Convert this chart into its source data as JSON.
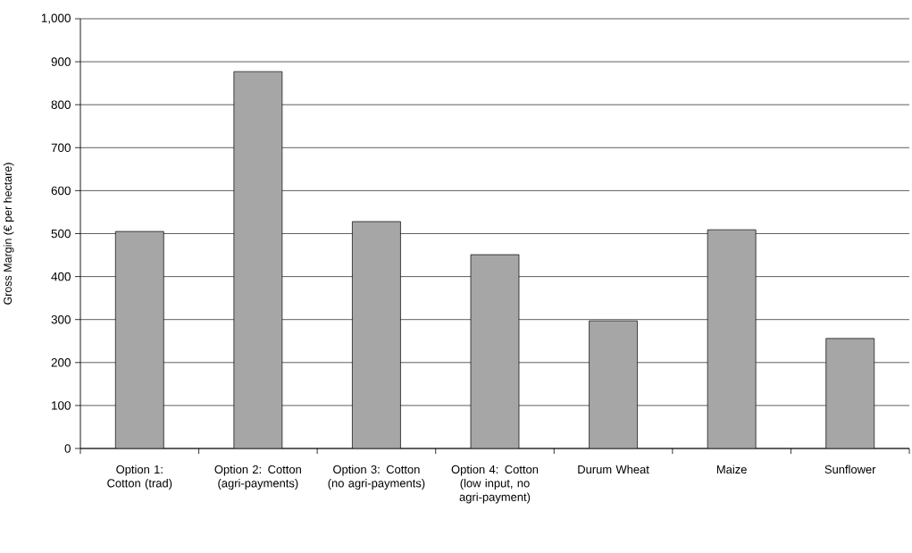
{
  "chart_data": {
    "type": "bar",
    "ylabel": "Gross Margin (€ per hectare)",
    "categories": [
      "Option 1: Cotton (trad)",
      "Option 2: Cotton (agri-payments)",
      "Option 3: Cotton (no agri-payments)",
      "Option 4: Cotton (low input, no agri-payment)",
      "Durum Wheat",
      "Maize",
      "Sunflower"
    ],
    "values": [
      505,
      877,
      528,
      451,
      297,
      509,
      256
    ],
    "color": "#a6a6a6",
    "ylim": [
      0,
      1000
    ],
    "yticks": [
      0,
      100,
      200,
      300,
      400,
      500,
      600,
      700,
      800,
      900,
      {
        "value": 1000,
        "label": "1,000"
      }
    ],
    "grid": "y"
  }
}
